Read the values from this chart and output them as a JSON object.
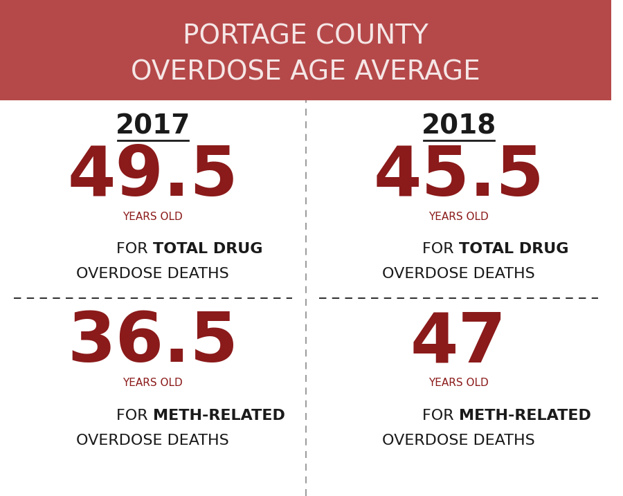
{
  "title_line1": "PORTAGE COUNTY",
  "title_line2": "OVERDOSE AGE AVERAGE",
  "title_bg_color": "#b5494a",
  "title_text_color": "#f5e6e6",
  "bg_color": "#ffffff",
  "dark_red": "#8b1a1a",
  "dark_text": "#1a1a1a",
  "year_2017": "2017",
  "year_2018": "2018",
  "val_2017_total": "49.5",
  "val_2017_meth": "36.5",
  "val_2018_total": "45.5",
  "val_2018_meth": "47",
  "years_old": "YEARS OLD",
  "label_for": "FOR ",
  "label_total_drug_bold": "TOTAL DRUG",
  "label_total_drug_normal": "OVERDOSE DEATHS",
  "label_meth_bold": "METH-RELATED",
  "label_meth_normal": "OVERDOSE DEATHS",
  "number_fontsize": 72,
  "years_old_fontsize": 11,
  "label_fontsize": 16,
  "year_fontsize": 28,
  "title_fontsize": 28
}
